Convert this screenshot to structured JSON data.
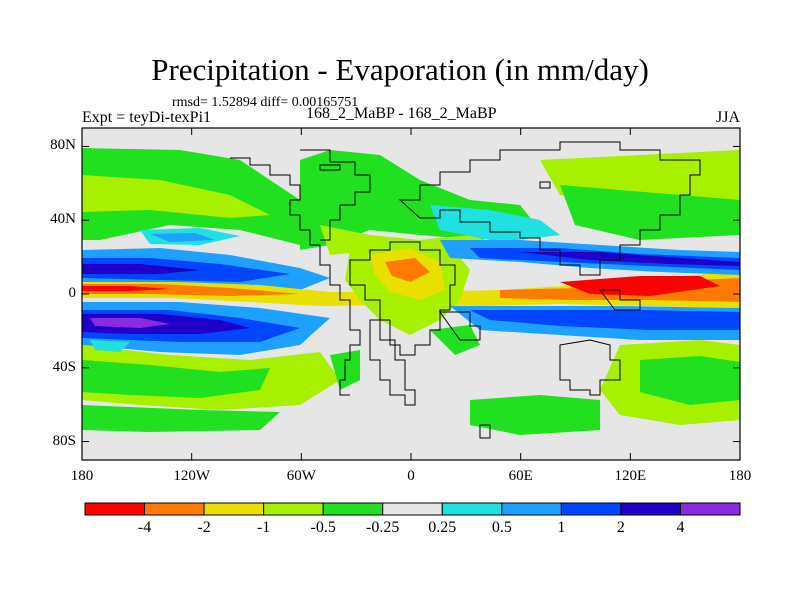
{
  "title": "Precipitation - Evaporation (in mm/day)",
  "stats": "rmsd= 1.52894 diff= 0.00165751",
  "experiment": "Expt = teyDi-texPi1",
  "subtitle": "168_2_MaBP - 168_2_MaBP",
  "season": "JJA",
  "axes": {
    "lon_range": [
      -180,
      180
    ],
    "lat_range": [
      -90,
      90
    ],
    "x_ticks": [
      {
        "value": -180,
        "label": "180"
      },
      {
        "value": -120,
        "label": "120W"
      },
      {
        "value": -60,
        "label": "60W"
      },
      {
        "value": 0,
        "label": "0"
      },
      {
        "value": 60,
        "label": "60E"
      },
      {
        "value": 120,
        "label": "120E"
      },
      {
        "value": 180,
        "label": "180"
      }
    ],
    "y_ticks": [
      {
        "value": 80,
        "label": "80N"
      },
      {
        "value": 40,
        "label": "40N"
      },
      {
        "value": 0,
        "label": "0"
      },
      {
        "value": -40,
        "label": "40S"
      },
      {
        "value": -80,
        "label": "80S"
      }
    ]
  },
  "colorbar": {
    "colors": [
      "#ff0000",
      "#ff7a00",
      "#e8e000",
      "#a6f000",
      "#20e020",
      "#e6e6e6",
      "#20e0e0",
      "#1ea0ff",
      "#0046ff",
      "#2000c8",
      "#8a2be2"
    ],
    "labels": [
      "-4",
      "-2",
      "-1",
      "-0.5",
      "-0.25",
      "0.25",
      "0.5",
      "1",
      "2",
      "4"
    ]
  },
  "colors": {
    "background": "#ffffff",
    "land": "#e6e6e6",
    "coastline": "#000000"
  }
}
